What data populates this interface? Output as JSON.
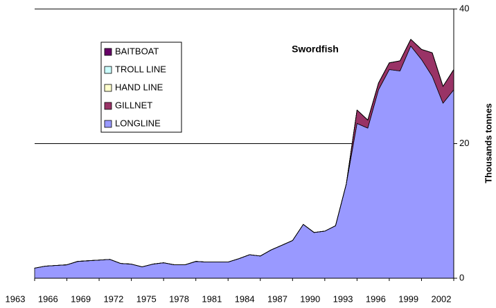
{
  "chart_data": {
    "type": "stacked-area",
    "title": "Swordfish",
    "y_label": "Thousands tonnes",
    "categories": [
      "1963",
      null,
      null,
      "1966",
      null,
      null,
      "1969",
      null,
      null,
      "1972",
      null,
      null,
      "1975",
      null,
      null,
      "1978",
      null,
      null,
      "1981",
      null,
      null,
      "1984",
      null,
      null,
      "1987",
      null,
      null,
      "1990",
      null,
      null,
      "1993",
      null,
      null,
      "1996",
      null,
      null,
      "1999",
      null,
      null,
      "2002"
    ],
    "series": [
      {
        "name": "LONGLINE",
        "color": "#9999ff",
        "values": [
          1.5,
          1.8,
          1.9,
          2.0,
          2.5,
          2.6,
          2.7,
          2.8,
          2.2,
          2.1,
          1.7,
          2.1,
          2.3,
          2.0,
          2.0,
          2.5,
          2.4,
          2.4,
          2.4,
          2.9,
          3.5,
          3.3,
          4.2,
          4.9,
          5.6,
          8.0,
          6.8,
          7.0,
          7.8,
          14.0,
          23.0,
          22.3,
          28.0,
          31.0,
          30.8,
          34.5,
          32.5,
          30.0,
          26.0,
          28.0
        ]
      },
      {
        "name": "GILLNET",
        "color": "#993366",
        "values": [
          0,
          0,
          0,
          0,
          0,
          0,
          0,
          0,
          0,
          0,
          0,
          0,
          0,
          0,
          0,
          0,
          0,
          0,
          0,
          0,
          0,
          0,
          0,
          0,
          0,
          0,
          0,
          0,
          0,
          0,
          2.0,
          1.2,
          1.0,
          1.0,
          1.5,
          1.0,
          1.5,
          3.5,
          2.5,
          3.0
        ]
      },
      {
        "name": "HAND LINE",
        "color": "#ffffcc",
        "values": [
          0,
          0,
          0,
          0,
          0,
          0,
          0,
          0,
          0,
          0,
          0,
          0,
          0,
          0,
          0,
          0,
          0,
          0,
          0,
          0,
          0,
          0,
          0,
          0,
          0,
          0,
          0,
          0,
          0,
          0,
          0,
          0,
          0,
          0,
          0,
          0,
          0,
          0,
          0,
          0
        ]
      },
      {
        "name": "TROLL LINE",
        "color": "#ccffff",
        "values": [
          0,
          0,
          0,
          0,
          0,
          0,
          0,
          0,
          0,
          0,
          0,
          0,
          0,
          0,
          0,
          0,
          0,
          0,
          0,
          0,
          0,
          0,
          0,
          0,
          0,
          0,
          0,
          0,
          0,
          0,
          0,
          0,
          0,
          0,
          0,
          0,
          0,
          0,
          0,
          0
        ]
      },
      {
        "name": "BAITBOAT",
        "color": "#660066",
        "values": [
          0,
          0,
          0,
          0,
          0,
          0,
          0,
          0,
          0,
          0,
          0,
          0,
          0,
          0,
          0,
          0,
          0,
          0,
          0,
          0,
          0,
          0,
          0,
          0,
          0,
          0,
          0,
          0,
          0,
          0,
          0,
          0,
          0,
          0,
          0,
          0,
          0,
          0,
          0,
          0
        ]
      }
    ],
    "ylim": [
      0,
      40
    ],
    "yticks": [
      0,
      20,
      40
    ],
    "y_axis_side": "right",
    "grid": true
  }
}
